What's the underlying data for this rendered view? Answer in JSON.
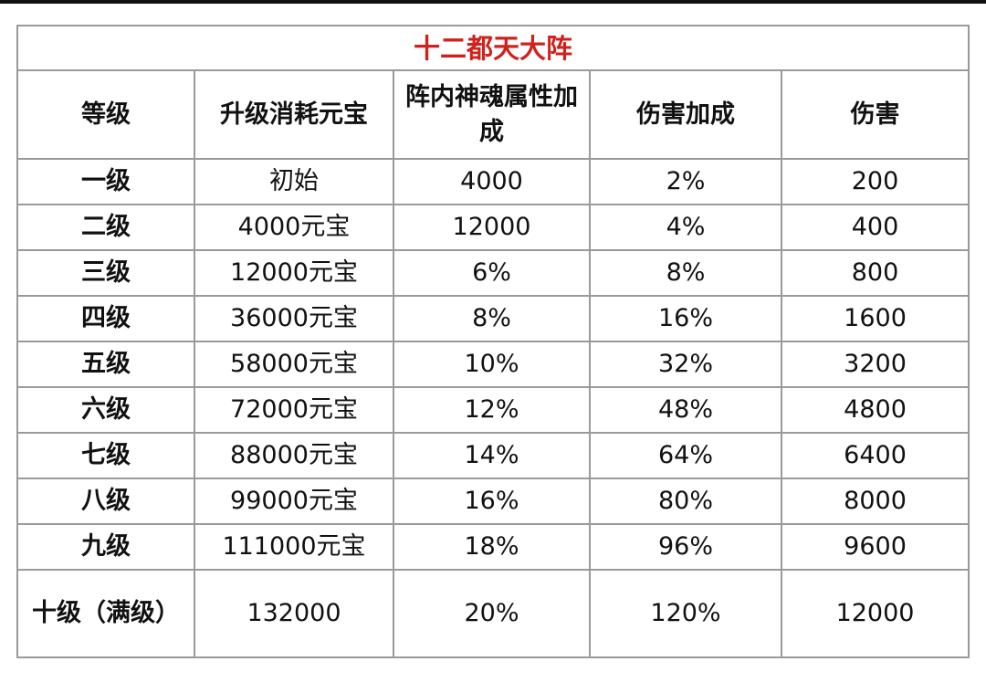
{
  "table": {
    "title": "十二都天大阵",
    "header": [
      "等级",
      "升级消耗元宝",
      "阵内神魂属性加成",
      "伤害加成",
      "伤害"
    ],
    "rows": [
      [
        "一级",
        "初始",
        "4000",
        "2%",
        "200"
      ],
      [
        "二级",
        "4000元宝",
        "12000",
        "4%",
        "400"
      ],
      [
        "三级",
        "12000元宝",
        "6%",
        "8%",
        "800"
      ],
      [
        "四级",
        "36000元宝",
        "8%",
        "16%",
        "1600"
      ],
      [
        "五级",
        "58000元宝",
        "10%",
        "32%",
        "3200"
      ],
      [
        "六级",
        "72000元宝",
        "12%",
        "48%",
        "4800"
      ],
      [
        "七级",
        "88000元宝",
        "14%",
        "64%",
        "6400"
      ],
      [
        "八级",
        "99000元宝",
        "16%",
        "80%",
        "8000"
      ],
      [
        "九级",
        "111000元宝",
        "18%",
        "96%",
        "9600"
      ],
      [
        "十级（满级）",
        "132000",
        "20%",
        "120%",
        "12000"
      ]
    ]
  }
}
